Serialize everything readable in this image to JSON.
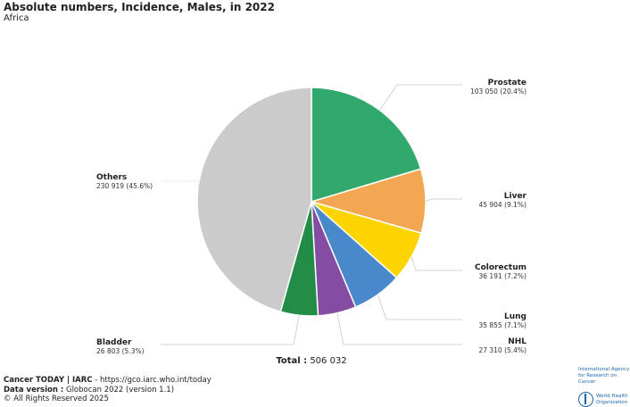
{
  "header": {
    "title": "Absolute numbers, Incidence, Males, in 2022",
    "subtitle": "Africa"
  },
  "chart_data": {
    "type": "pie",
    "title": "Absolute numbers, Incidence, Males, in 2022",
    "subtitle": "Africa",
    "total_label": "Total : 506 032",
    "slices": [
      {
        "name": "Prostate",
        "value": 103050,
        "value_label": "103 050 (20.4%)",
        "color": "#31a96d"
      },
      {
        "name": "Liver",
        "value": 45904,
        "value_label": "45 904 (9.1%)",
        "color": "#f4a753"
      },
      {
        "name": "Colorectum",
        "value": 36191,
        "value_label": "36 191 (7.2%)",
        "color": "#fcd500"
      },
      {
        "name": "Lung",
        "value": 35855,
        "value_label": "35 855 (7.1%)",
        "color": "#4a88cc"
      },
      {
        "name": "NHL",
        "value": 27310,
        "value_label": "27 310 (5.4%)",
        "color": "#844ca2"
      },
      {
        "name": "Bladder",
        "value": 26803,
        "value_label": "26 803 (5.3%)",
        "color": "#228d46"
      },
      {
        "name": "Others",
        "value": 230919,
        "value_label": "230 919 (45.6%)",
        "color": "#cbcbcb"
      }
    ]
  },
  "footer": {
    "source_bold": "Cancer TODAY | IARC",
    "source_rest": " - https://gco.iarc.who.int/today",
    "version_bold": "Data version :",
    "version_rest": " Globocan 2022 (version 1.1)",
    "copyright": "© All Rights Reserved 2025"
  },
  "logos": {
    "iarc_line1": "International Agency",
    "iarc_line2": "for Research on Cancer",
    "who_line1": "World Health",
    "who_line2": "Organization"
  }
}
